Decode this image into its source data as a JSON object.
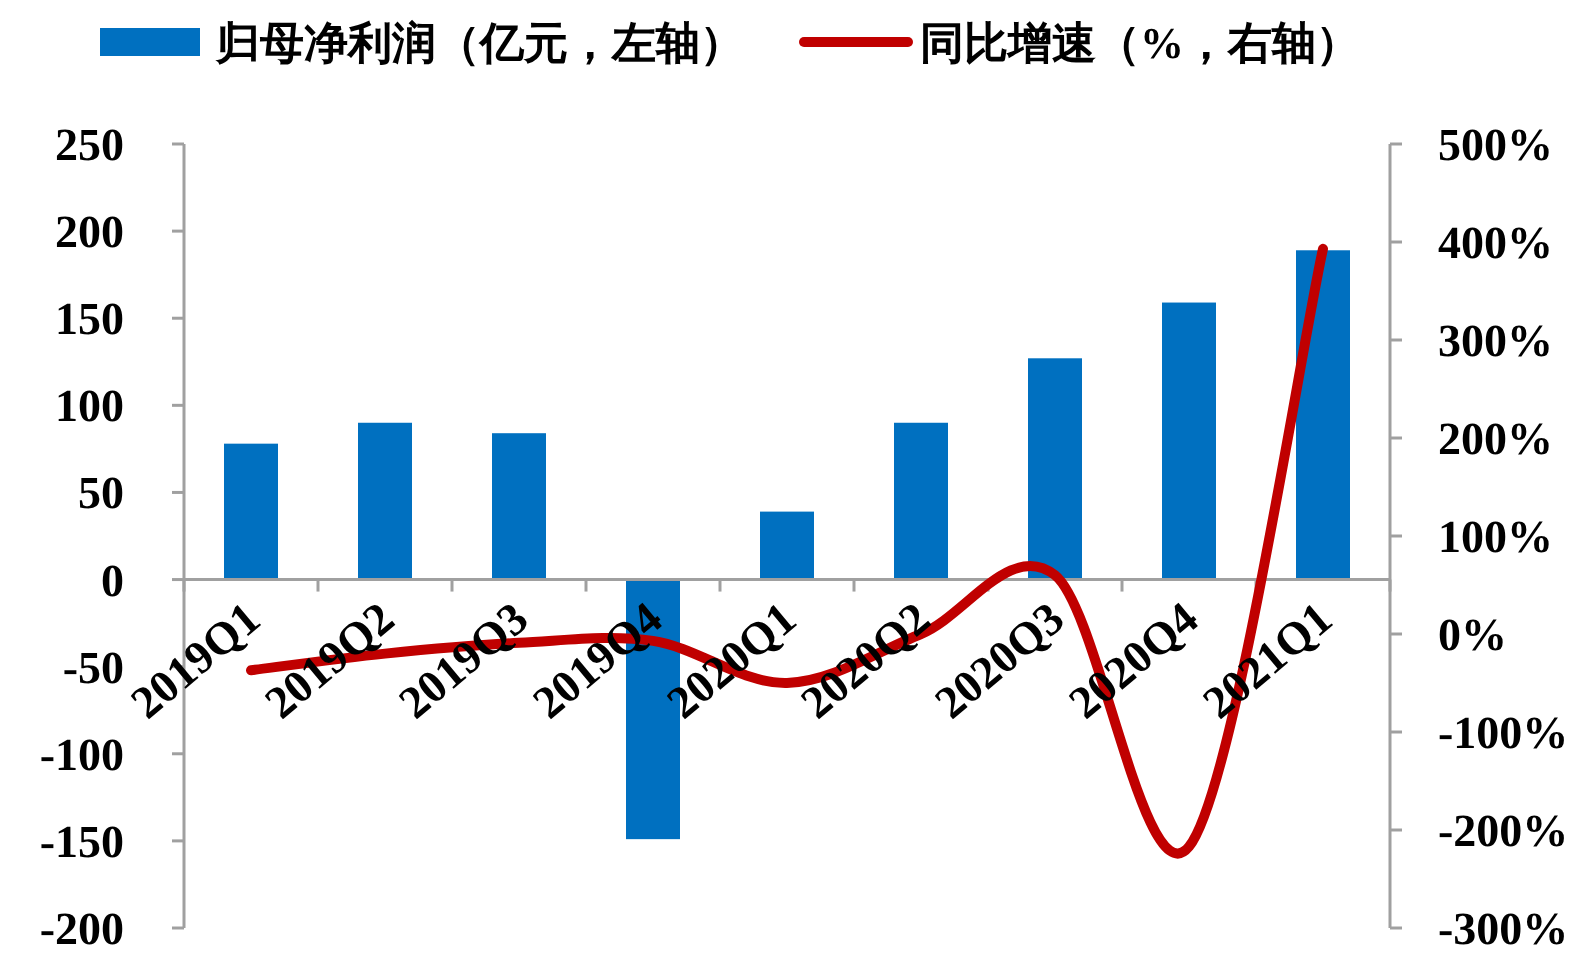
{
  "chart_data": {
    "type": "bar",
    "legend": "top",
    "grid": false,
    "categories": [
      "2019Q1",
      "2019Q2",
      "2019Q3",
      "2019Q4",
      "2020Q1",
      "2020Q2",
      "2020Q3",
      "2020Q4",
      "2021Q1"
    ],
    "series": [
      {
        "name": "归母净利润（亿元，左轴）",
        "color": "#0070c0",
        "values": [
          78,
          90,
          84,
          -149,
          39,
          90,
          127,
          159,
          189
        ]
      },
      {
        "name": "同比增速（%，右轴）",
        "type": "line",
        "axis": "y2",
        "color": "#c00000",
        "values": [
          -37,
          -20,
          -9,
          -7,
          -50,
          0,
          60,
          -217,
          393
        ]
      }
    ],
    "ylim": [
      -200,
      250
    ],
    "yticks": [
      -200,
      -150,
      -100,
      -50,
      0,
      50,
      100,
      150,
      200,
      250
    ],
    "y2lim": [
      -300,
      500
    ],
    "y2ticks": [
      {
        "value": -300,
        "label": "-300%"
      },
      {
        "value": -200,
        "label": "-200%"
      },
      {
        "value": -100,
        "label": "-100%"
      },
      {
        "value": 0,
        "label": "0%"
      },
      {
        "value": 100,
        "label": "100%"
      },
      {
        "value": 200,
        "label": "200%"
      },
      {
        "value": 300,
        "label": "300%"
      },
      {
        "value": 400,
        "label": "400%"
      },
      {
        "value": 500,
        "label": "500%"
      }
    ]
  }
}
